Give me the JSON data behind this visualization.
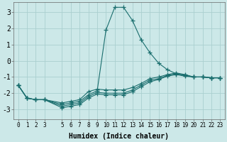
{
  "xlabel": "Humidex (Indice chaleur)",
  "background_color": "#cce8e8",
  "grid_color": "#aacfcf",
  "line_color": "#1a6e6e",
  "xlim": [
    -0.5,
    23.5
  ],
  "ylim": [
    -3.6,
    3.6
  ],
  "x_ticks": [
    0,
    1,
    2,
    3,
    5,
    6,
    7,
    8,
    9,
    10,
    11,
    12,
    13,
    14,
    15,
    16,
    17,
    18,
    19,
    20,
    21,
    22,
    23
  ],
  "y_ticks": [
    -3,
    -2,
    -1,
    0,
    1,
    2,
    3
  ],
  "lines": [
    {
      "x": [
        0,
        1,
        2,
        3,
        5,
        6,
        7,
        8,
        9,
        10,
        11,
        12,
        13,
        14,
        15,
        16,
        17,
        18,
        19,
        20,
        21,
        22,
        23
      ],
      "y": [
        -1.5,
        -2.3,
        -2.4,
        -2.4,
        -2.7,
        -2.6,
        -2.5,
        -2.1,
        -1.85,
        1.9,
        3.3,
        3.3,
        2.5,
        1.3,
        0.5,
        -0.15,
        -0.55,
        -0.8,
        -0.9,
        -1.0,
        -1.0,
        -1.05,
        -1.05
      ]
    },
    {
      "x": [
        0,
        1,
        2,
        3,
        5,
        6,
        7,
        8,
        9,
        10,
        11,
        12,
        13,
        14,
        15,
        16,
        17,
        18,
        19,
        20,
        21,
        22,
        23
      ],
      "y": [
        -1.5,
        -2.3,
        -2.4,
        -2.4,
        -2.8,
        -2.7,
        -2.6,
        -2.2,
        -1.95,
        -2.0,
        -2.0,
        -2.0,
        -1.8,
        -1.5,
        -1.2,
        -1.1,
        -0.9,
        -0.8,
        -0.9,
        -1.0,
        -1.0,
        -1.05,
        -1.05
      ]
    },
    {
      "x": [
        0,
        1,
        2,
        3,
        5,
        6,
        7,
        8,
        9,
        10,
        11,
        12,
        13,
        14,
        15,
        16,
        17,
        18,
        19,
        20,
        21,
        22,
        23
      ],
      "y": [
        -1.5,
        -2.3,
        -2.4,
        -2.4,
        -2.9,
        -2.8,
        -2.7,
        -2.3,
        -2.05,
        -2.1,
        -2.1,
        -2.1,
        -1.9,
        -1.6,
        -1.3,
        -1.15,
        -0.95,
        -0.85,
        -0.95,
        -1.0,
        -1.0,
        -1.05,
        -1.05
      ]
    },
    {
      "x": [
        0,
        1,
        2,
        3,
        5,
        6,
        7,
        8,
        9,
        10,
        11,
        12,
        13,
        14,
        15,
        16,
        17,
        18,
        19,
        20,
        21,
        22,
        23
      ],
      "y": [
        -1.5,
        -2.3,
        -2.4,
        -2.4,
        -2.6,
        -2.5,
        -2.4,
        -1.9,
        -1.75,
        -1.8,
        -1.8,
        -1.8,
        -1.65,
        -1.4,
        -1.1,
        -1.0,
        -0.85,
        -0.75,
        -0.85,
        -1.0,
        -1.0,
        -1.05,
        -1.05
      ]
    }
  ]
}
